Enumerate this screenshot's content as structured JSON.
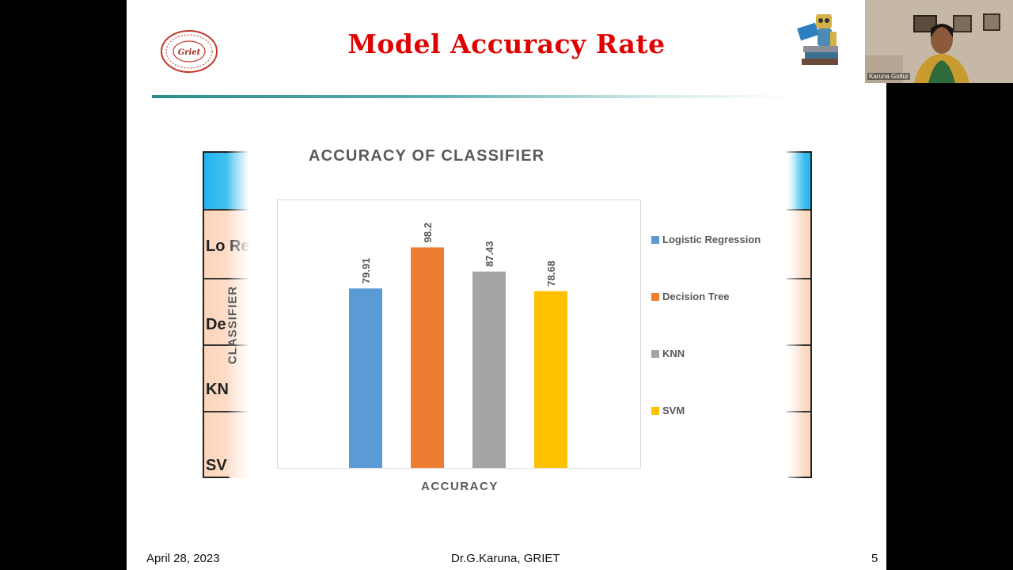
{
  "slide": {
    "title": "Model Accuracy Rate",
    "footer": {
      "date": "April 28, 2023",
      "author": "Dr.G.Karuna, GRIET",
      "page": "5"
    },
    "logo_text": "Griet",
    "background_table": {
      "rows": [
        "Lo Re",
        "De",
        "KN",
        "SV"
      ]
    }
  },
  "colors": {
    "title": "#e00000",
    "logistic_regression": "#5b9bd5",
    "decision_tree": "#ed7d31",
    "knn": "#a5a5a5",
    "svm": "#ffc000"
  },
  "chart_data": {
    "type": "bar",
    "title": "ACCURACY OF CLASSIFIER",
    "xlabel": "ACCURACY",
    "ylabel": "CLASSIFIER",
    "ylim": [
      0,
      110
    ],
    "grid": false,
    "legend_position": "right",
    "series": [
      {
        "name": "Logistic Regression",
        "values": [
          79.91
        ],
        "color": "#5b9bd5"
      },
      {
        "name": "Decision Tree",
        "values": [
          98.2
        ],
        "color": "#ed7d31"
      },
      {
        "name": "KNN",
        "values": [
          87.43
        ],
        "color": "#a5a5a5"
      },
      {
        "name": "SVM",
        "values": [
          78.68
        ],
        "color": "#ffc000"
      }
    ]
  },
  "webcam": {
    "participant_name": "Karuna Gotlur"
  }
}
